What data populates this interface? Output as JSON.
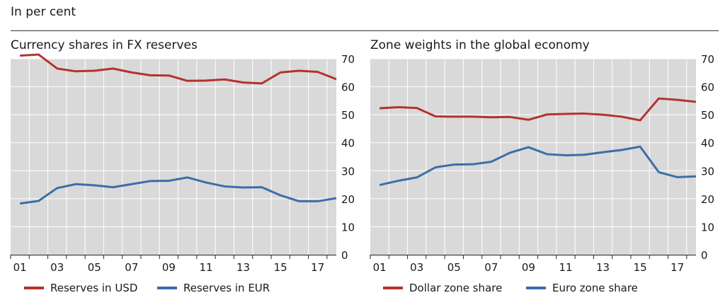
{
  "header_note": "In per cent",
  "colors": {
    "plot_bg": "#d9d9d9",
    "grid": "#ffffff",
    "red": "#b5322d",
    "blue": "#3b6ea8"
  },
  "chart_data": [
    {
      "type": "line",
      "title": "Currency shares in FX reserves",
      "x": [
        2000,
        2001,
        2002,
        2003,
        2004,
        2005,
        2006,
        2007,
        2008,
        2009,
        2010,
        2011,
        2012,
        2013,
        2014,
        2015,
        2016,
        2017
      ],
      "x_tick_labels": [
        "01",
        "03",
        "05",
        "07",
        "09",
        "11",
        "13",
        "15",
        "17"
      ],
      "x_tick_values": [
        2000.5,
        2002.5,
        2004.5,
        2006.5,
        2008.5,
        2010.5,
        2012.5,
        2014.5,
        2016.5
      ],
      "xlim": [
        2000,
        2017.5
      ],
      "ylim": [
        0,
        70
      ],
      "y_ticks": [
        0,
        10,
        20,
        30,
        40,
        50,
        60,
        70
      ],
      "y_axis_side": "right",
      "grid": true,
      "legend_placement": "bottom",
      "series": [
        {
          "name": "Reserves in USD",
          "color": "#b5322d",
          "values": [
            71.1,
            71.5,
            66.5,
            65.5,
            65.7,
            66.5,
            65.1,
            64.1,
            64.0,
            62.1,
            62.2,
            62.6,
            61.5,
            61.2,
            65.1,
            65.7,
            65.3,
            62.7
          ]
        },
        {
          "name": "Reserves in EUR",
          "color": "#3b6ea8",
          "values": [
            18.3,
            19.2,
            23.8,
            25.2,
            24.8,
            24.1,
            25.2,
            26.3,
            26.4,
            27.6,
            25.8,
            24.4,
            24.0,
            24.1,
            21.2,
            19.1,
            19.1,
            20.2
          ]
        }
      ]
    },
    {
      "type": "line",
      "title": "Zone weights in the global economy",
      "x": [
        2000,
        2001,
        2002,
        2003,
        2004,
        2005,
        2006,
        2007,
        2008,
        2009,
        2010,
        2011,
        2012,
        2013,
        2014,
        2015,
        2016,
        2017
      ],
      "x_tick_labels": [
        "01",
        "03",
        "05",
        "07",
        "09",
        "11",
        "13",
        "15",
        "17"
      ],
      "x_tick_values": [
        2000.5,
        2002.5,
        2004.5,
        2006.5,
        2008.5,
        2010.5,
        2012.5,
        2014.5,
        2016.5
      ],
      "xlim": [
        2000,
        2017.5
      ],
      "ylim": [
        0,
        70
      ],
      "y_ticks": [
        0,
        10,
        20,
        30,
        40,
        50,
        60,
        70
      ],
      "y_axis_side": "right",
      "grid": true,
      "legend_placement": "bottom",
      "series": [
        {
          "name": "Dollar zone share",
          "color": "#b5322d",
          "values": [
            52.3,
            52.7,
            52.4,
            49.4,
            49.3,
            49.3,
            49.1,
            49.2,
            48.2,
            50.1,
            50.3,
            50.4,
            50.0,
            49.3,
            48.0,
            55.8,
            55.3,
            54.6
          ]
        },
        {
          "name": "Euro zone share",
          "color": "#3b6ea8",
          "values": [
            24.9,
            26.4,
            27.6,
            31.2,
            32.2,
            32.3,
            33.2,
            36.4,
            38.4,
            35.9,
            35.5,
            35.7,
            36.6,
            37.4,
            38.6,
            29.5,
            27.7,
            28.0
          ]
        }
      ]
    }
  ]
}
